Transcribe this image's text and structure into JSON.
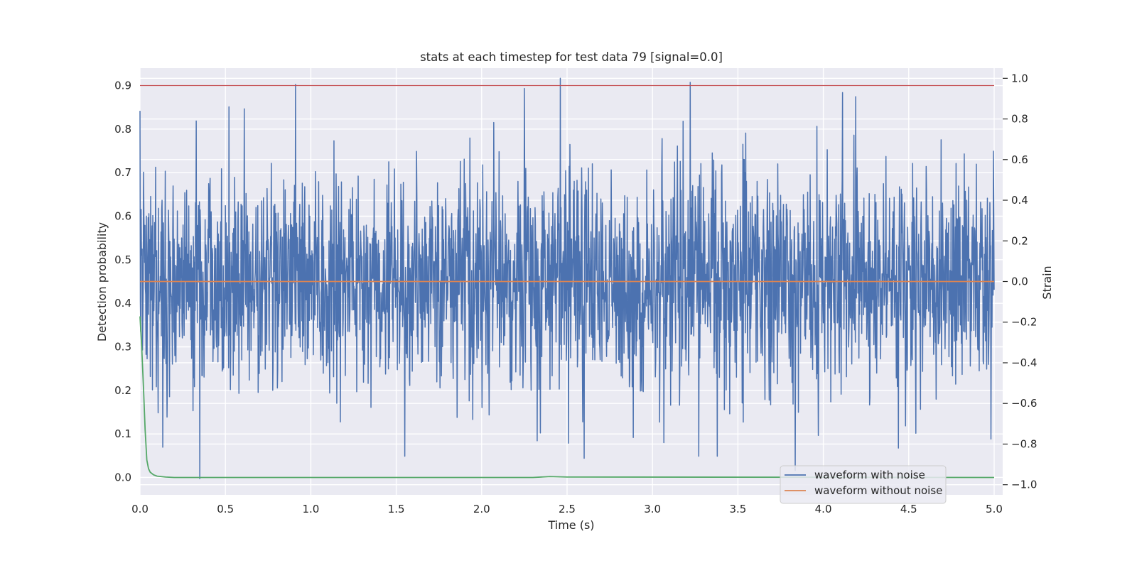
{
  "chart_data": {
    "type": "line",
    "title": "stats at each timestep for test data 79 [signal=0.0]",
    "xlabel": "Time (s)",
    "ylabel_left": "Detection probability",
    "ylabel_right": "Strain",
    "xlim": [
      0.0,
      5.05
    ],
    "ylim_left": [
      -0.04,
      0.94
    ],
    "ylim_right": [
      -1.05,
      1.05
    ],
    "x_ticks": [
      0.0,
      0.5,
      1.0,
      1.5,
      2.0,
      2.5,
      3.0,
      3.5,
      4.0,
      4.5,
      5.0
    ],
    "x_tick_labels": [
      "0.0",
      "0.5",
      "1.0",
      "1.5",
      "2.0",
      "2.5",
      "3.0",
      "3.5",
      "4.0",
      "4.5",
      "5.0"
    ],
    "y_left_ticks": [
      0.0,
      0.1,
      0.2,
      0.3,
      0.4,
      0.5,
      0.6,
      0.7,
      0.8,
      0.9
    ],
    "y_left_tick_labels": [
      "0.0",
      "0.1",
      "0.2",
      "0.3",
      "0.4",
      "0.5",
      "0.6",
      "0.7",
      "0.8",
      "0.9"
    ],
    "y_right_ticks": [
      -1.0,
      -0.8,
      -0.6,
      -0.4,
      -0.2,
      0.0,
      0.2,
      0.4,
      0.6,
      0.8,
      1.0
    ],
    "y_right_tick_labels": [
      "−1.0",
      "−0.8",
      "−0.6",
      "−0.4",
      "−0.2",
      "0.0",
      "0.2",
      "0.4",
      "0.6",
      "0.8",
      "1.0"
    ],
    "grid": true,
    "legend_position": "lower-right",
    "series": [
      {
        "name": "waveform with noise",
        "axis": "right",
        "color": "#4c72b0",
        "style": "dense-noise",
        "x_range": [
          0.0,
          5.0
        ],
        "center": 0.0,
        "typical_range": [
          -0.55,
          0.55
        ],
        "peaks": [
          {
            "x": 0.0,
            "y": 0.84
          },
          {
            "x": 0.33,
            "y": 0.79
          },
          {
            "x": 0.35,
            "y": -0.97
          },
          {
            "x": 0.52,
            "y": 0.86
          },
          {
            "x": 0.61,
            "y": 0.85
          },
          {
            "x": 0.91,
            "y": 0.97
          },
          {
            "x": 1.55,
            "y": -0.86
          },
          {
            "x": 2.25,
            "y": 0.95
          },
          {
            "x": 2.46,
            "y": 1.0
          },
          {
            "x": 2.6,
            "y": -0.87
          },
          {
            "x": 3.22,
            "y": 0.98
          },
          {
            "x": 3.27,
            "y": -0.86
          },
          {
            "x": 3.38,
            "y": -0.86
          },
          {
            "x": 4.19,
            "y": 0.91
          },
          {
            "x": 4.44,
            "y": -0.82
          }
        ]
      },
      {
        "name": "waveform without noise",
        "axis": "right",
        "color": "#dd8452",
        "x": [
          0.0,
          5.0
        ],
        "y": [
          0.0,
          0.0
        ]
      },
      {
        "name": "",
        "axis": "left",
        "color": "#55a868",
        "x": [
          0.0,
          0.01,
          0.02,
          0.03,
          0.04,
          0.05,
          0.06,
          0.08,
          0.1,
          0.15,
          0.2,
          2.3,
          2.4,
          2.5,
          5.0
        ],
        "y": [
          0.37,
          0.3,
          0.21,
          0.11,
          0.04,
          0.02,
          0.012,
          0.006,
          0.003,
          0.001,
          0.0,
          0.0,
          0.002,
          0.001,
          0.0
        ]
      },
      {
        "name": "",
        "axis": "left",
        "color": "#c44e52",
        "x": [
          0.0,
          5.0
        ],
        "y": [
          0.9,
          0.9
        ]
      }
    ]
  }
}
